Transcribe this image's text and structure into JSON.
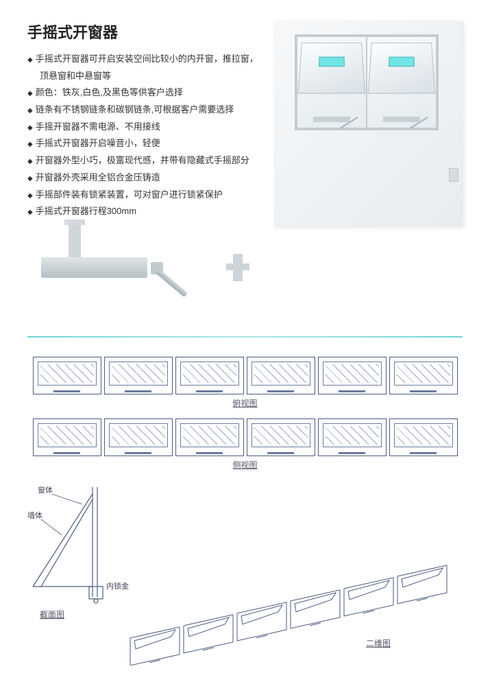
{
  "title": "手摇式开窗器",
  "bullets": [
    "手摇式开窗器可开启安装空间比较小的内开窗，推拉窗，",
    "顶悬窗和中悬窗等",
    "颜色：铁灰,白色,及黑色等供客户选择",
    "链条有不锈钢链条和碳钢链条,可根据客户需要选择",
    "手摇开窗器不需电源、不用接线",
    "手摇式开窗器开启噪音小，轻便",
    "开窗器外型小巧，极富现代感，并带有隐藏式手摇部分",
    "开窗器外壳采用全铝合金压铸造",
    "手摇部件装有锁紧装置，可对窗户进行锁紧保护",
    "手摇式开窗器行程300mm"
  ],
  "bullet_indent_indices": [
    1
  ],
  "diagram_labels": {
    "front_view": "俯视图",
    "side_view": "侧视图",
    "section_view": "截面图",
    "perspective": "二维图",
    "window_body": "窗体",
    "wall_body": "墙体",
    "bracket": "内锁金"
  },
  "colors": {
    "title": "#222222",
    "text": "#333333",
    "divider": "#6fd4d4",
    "diagram_stroke": "#4a5a80",
    "cyan_accent": "#6fe4e4",
    "panel_bg_light": "#f6f8fa",
    "panel_bg_dark": "#e8ecee"
  },
  "window_row_count": 6,
  "stroke_length_mm": 300
}
